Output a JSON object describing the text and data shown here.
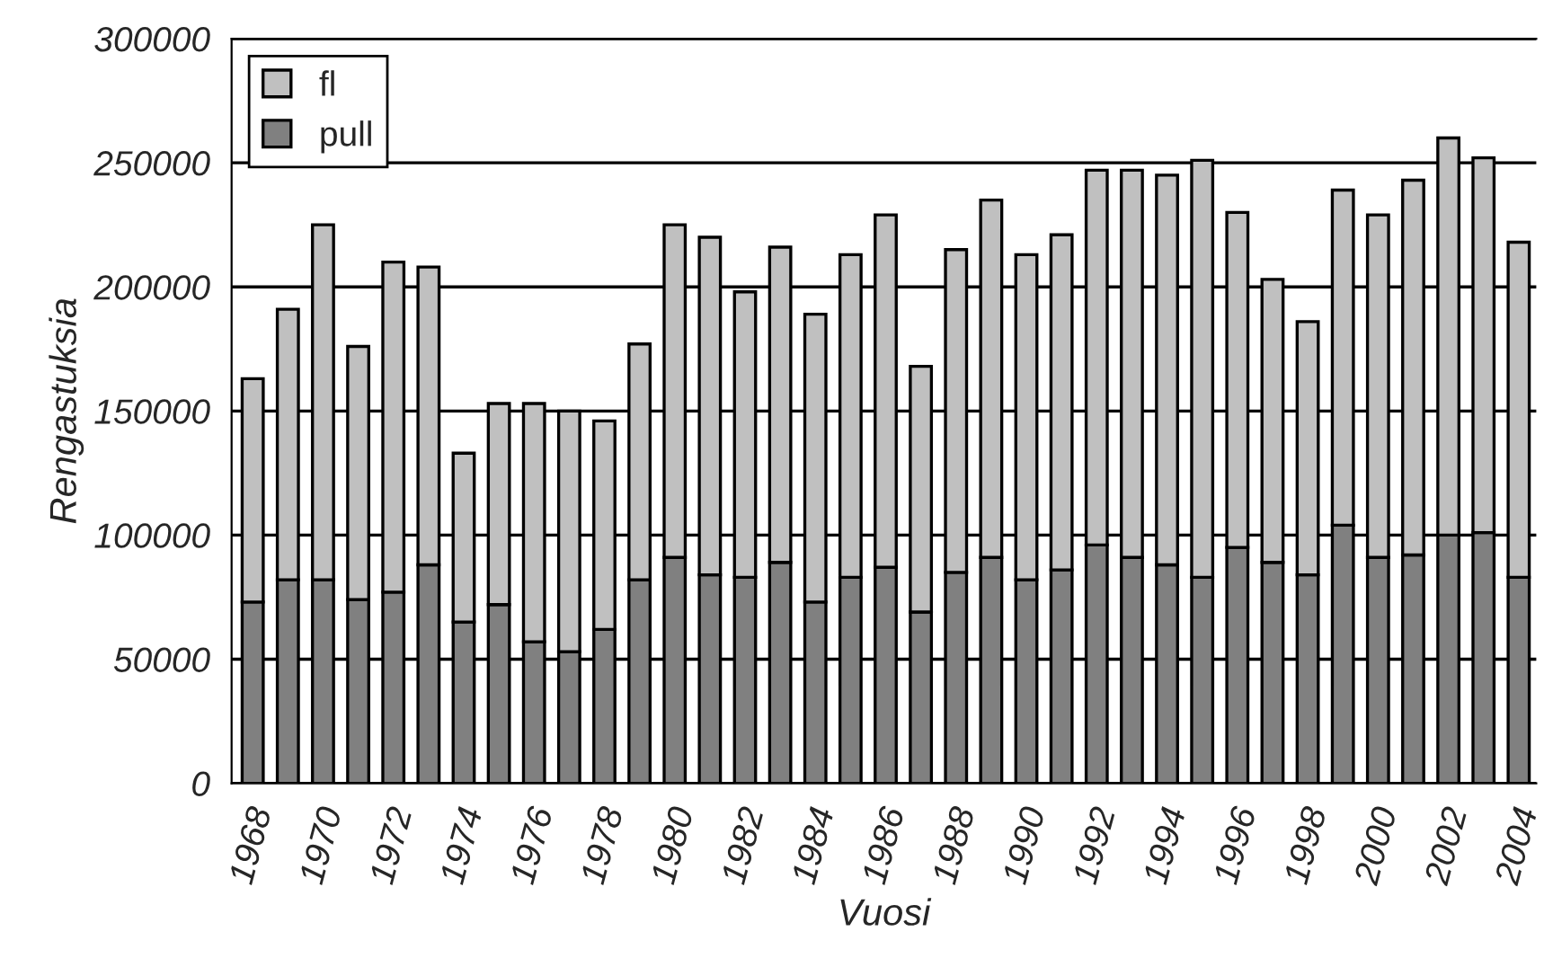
{
  "chart_data": {
    "type": "bar",
    "stacked": true,
    "xlabel": "Vuosi",
    "ylabel": "Rengastuksia",
    "categories": [
      "1968",
      null,
      "1970",
      null,
      "1972",
      null,
      "1974",
      null,
      "1976",
      null,
      "1978",
      null,
      "1980",
      null,
      "1982",
      null,
      "1984",
      null,
      "1986",
      null,
      "1988",
      null,
      "1990",
      null,
      "1992",
      null,
      "1994",
      null,
      "1996",
      null,
      "1998",
      null,
      "2000",
      null,
      "2002",
      null,
      "2004"
    ],
    "series": [
      {
        "name": "pull",
        "color": "#808080",
        "values": [
          73000,
          82000,
          82000,
          74000,
          77000,
          88000,
          65000,
          72000,
          57000,
          53000,
          62000,
          82000,
          91000,
          84000,
          83000,
          89000,
          73000,
          83000,
          87000,
          69000,
          85000,
          91000,
          82000,
          86000,
          96000,
          91000,
          88000,
          83000,
          95000,
          89000,
          84000,
          104000,
          91000,
          92000,
          100000,
          101000,
          83000
        ]
      },
      {
        "name": "fl",
        "color": "#c0c0c0",
        "values": [
          90000,
          109000,
          143000,
          102000,
          133000,
          120000,
          68000,
          81000,
          96000,
          97000,
          84000,
          95000,
          134000,
          136000,
          115000,
          127000,
          116000,
          130000,
          142000,
          99000,
          130000,
          144000,
          131000,
          135000,
          151000,
          156000,
          157000,
          168000,
          135000,
          114000,
          102000,
          135000,
          138000,
          151000,
          160000,
          151000,
          135000
        ]
      }
    ],
    "ylim": [
      0,
      300000
    ],
    "yticks": [
      0,
      50000,
      100000,
      150000,
      200000,
      250000,
      300000
    ],
    "grid": "y",
    "legend": "top left"
  }
}
